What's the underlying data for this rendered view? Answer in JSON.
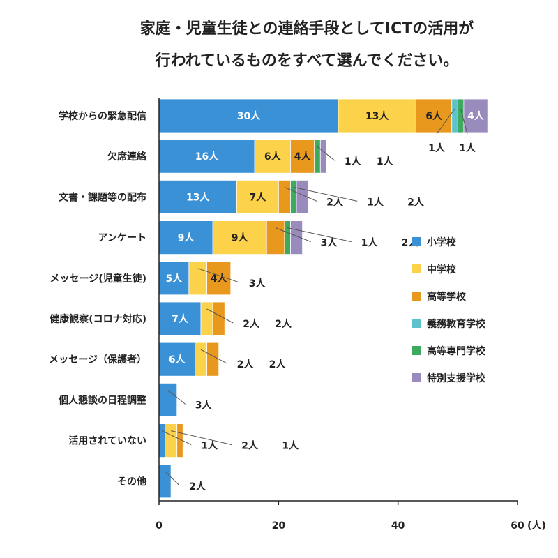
{
  "chart_data": {
    "type": "bar",
    "orientation": "horizontal",
    "stacked": true,
    "title": "家庭・児童生徒との連絡手段としてICTの活用が行われているものをすべて選んでください。",
    "title_lines": [
      "家庭・児童生徒との連絡手段としてICTの活用が",
      "行われているものをすべて選んでください。"
    ],
    "xlabel": "",
    "ylabel": "",
    "unit": "人",
    "unit_label": "(人)",
    "xlim": [
      0,
      60
    ],
    "xticks": [
      0,
      20,
      40,
      60
    ],
    "grid": false,
    "legend_position": "right",
    "categories": [
      "学校からの緊急配信",
      "欠席連絡",
      "文書・課題等の配布",
      "アンケート",
      "メッセージ(児童生徒)",
      "健康観察(コロナ対応)",
      "メッセージ（保護者）",
      "個人懇談の日程調整",
      "活用されていない",
      "その他"
    ],
    "series": [
      {
        "name": "小学校",
        "color": "#3a91d6",
        "label_color": "#ffffff",
        "values": [
          30,
          16,
          13,
          9,
          5,
          7,
          6,
          3,
          1,
          2
        ]
      },
      {
        "name": "中学校",
        "color": "#fbd24a",
        "label_color": "#222222",
        "values": [
          13,
          6,
          7,
          9,
          3,
          2,
          2,
          0,
          2,
          0
        ]
      },
      {
        "name": "高等学校",
        "color": "#e8981c",
        "label_color": "#222222",
        "values": [
          6,
          4,
          2,
          3,
          4,
          2,
          2,
          0,
          1,
          0
        ]
      },
      {
        "name": "義務教育学校",
        "color": "#5cc3cc",
        "label_color": "#222222",
        "values": [
          1,
          0,
          0,
          0,
          0,
          0,
          0,
          0,
          0,
          0
        ]
      },
      {
        "name": "高等専門学校",
        "color": "#3daa5f",
        "label_color": "#222222",
        "values": [
          1,
          1,
          1,
          1,
          0,
          0,
          0,
          0,
          0,
          0
        ]
      },
      {
        "name": "特別支援学校",
        "color": "#9a8bbd",
        "label_color": "#ffffff",
        "values": [
          4,
          1,
          2,
          2,
          0,
          0,
          0,
          0,
          0,
          0
        ]
      }
    ]
  }
}
